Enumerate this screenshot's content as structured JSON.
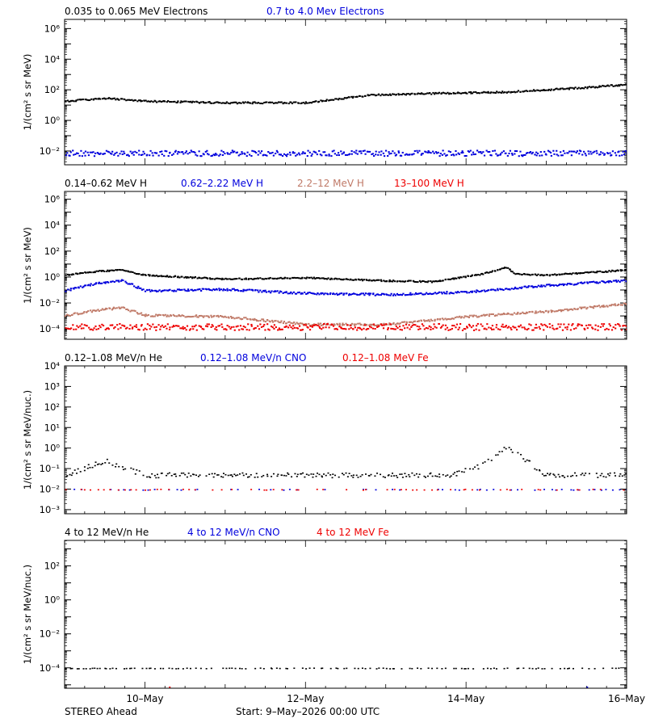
{
  "chart_data": [
    {
      "type": "scatter",
      "log_y": true,
      "ylim_log10": [
        -2.9,
        6.6
      ],
      "y_ticks_log10": [
        -2,
        0,
        2,
        4,
        6
      ],
      "y_tick_labels": [
        "10⁻²",
        "10⁰",
        "10²",
        "10⁴",
        "10⁶"
      ],
      "ylabel": "1/(cm² s sr MeV)",
      "legend_placement": "top",
      "series": [
        {
          "name": "0.035 to 0.065 MeV Electrons",
          "color": "#000000",
          "x_days": [
            0,
            0.5,
            1,
            2,
            3,
            3.8,
            4.5,
            5.5,
            6.5,
            7
          ],
          "y_log10": [
            1.3,
            1.5,
            1.3,
            1.2,
            1.2,
            1.7,
            1.8,
            1.9,
            2.2,
            2.4
          ]
        },
        {
          "name": "0.7 to 4.0 Mev Electrons",
          "color": "#0000dd",
          "x_days": [
            0,
            7
          ],
          "y_log10": [
            -2.1,
            -2.1
          ]
        }
      ]
    },
    {
      "type": "scatter",
      "log_y": true,
      "ylim_log10": [
        -4.8,
        6.6
      ],
      "y_ticks_log10": [
        -4,
        -2,
        0,
        2,
        4,
        6
      ],
      "y_tick_labels": [
        "10⁻⁴",
        "10⁻²",
        "10⁰",
        "10²",
        "10⁴",
        "10⁶"
      ],
      "ylabel": "1/(cm² s sr MeV)",
      "legend_placement": "top",
      "series": [
        {
          "name": "0.14–0.62 MeV H",
          "color": "#000000",
          "x_days": [
            0,
            0.4,
            0.7,
            1,
            2,
            3,
            3.8,
            4.6,
            5.2,
            5.5,
            5.6,
            6,
            7
          ],
          "y_log10": [
            0.2,
            0.5,
            0.6,
            0.2,
            -0.1,
            0,
            -0.2,
            -0.3,
            0.3,
            0.8,
            0.3,
            0.2,
            0.6
          ]
        },
        {
          "name": "0.62–2.22 MeV H",
          "color": "#0000dd",
          "x_days": [
            0,
            0.4,
            0.7,
            1,
            2,
            3,
            4,
            5,
            6,
            7
          ],
          "y_log10": [
            -1,
            -0.4,
            -0.2,
            -1,
            -0.9,
            -1.2,
            -1.3,
            -1.1,
            -0.6,
            -0.2
          ]
        },
        {
          "name": "2.2–12 MeV H",
          "color": "#c07a68",
          "x_days": [
            0,
            0.4,
            0.7,
            1,
            2,
            3,
            4,
            5,
            6,
            7
          ],
          "y_log10": [
            -2.9,
            -2.5,
            -2.3,
            -2.9,
            -3.0,
            -3.6,
            -3.6,
            -3.0,
            -2.6,
            -2.0
          ]
        },
        {
          "name": "13–100 MeV H",
          "color": "#ee0000",
          "x_days": [
            0,
            7
          ],
          "y_log10": [
            -3.8,
            -3.8
          ]
        }
      ]
    },
    {
      "type": "scatter",
      "log_y": true,
      "ylim_log10": [
        -3.2,
        4
      ],
      "y_ticks_log10": [
        -3,
        -2,
        -1,
        0,
        1,
        2,
        3,
        4
      ],
      "y_tick_labels": [
        "10⁻³",
        "10⁻²",
        "10⁻¹",
        "10⁰",
        "10¹",
        "10²",
        "10³",
        "10⁴"
      ],
      "ylabel": "1/(cm² s sr MeV/nuc.)",
      "legend_placement": "top",
      "series": [
        {
          "name": "0.12–1.08 MeV/n He",
          "color": "#000000",
          "x_days": [
            0,
            0.5,
            1,
            4.8,
            5.2,
            5.5,
            6,
            7
          ],
          "y_log10": [
            -1.3,
            -0.6,
            -1.3,
            -1.3,
            -0.8,
            0.1,
            -1.3,
            -1.3
          ]
        },
        {
          "name": "0.12–1.08 MeV/n CNO",
          "color": "#0000dd",
          "x_days": [
            0,
            7
          ],
          "y_log10": [
            -2,
            -2
          ]
        },
        {
          "name": "0.12–1.08 MeV Fe",
          "color": "#ee0000",
          "x_days": [
            0,
            7
          ],
          "y_log10": [
            -2,
            -2
          ]
        }
      ]
    },
    {
      "type": "scatter",
      "log_y": true,
      "ylim_log10": [
        -5.2,
        3.5
      ],
      "y_ticks_log10": [
        -4,
        -2,
        0,
        2
      ],
      "y_tick_labels": [
        "10⁻⁴",
        "10⁻²",
        "10⁰",
        "10²"
      ],
      "ylabel": "1/(cm² s sr MeV/nuc.)",
      "legend_placement": "top",
      "series": [
        {
          "name": "4 to 12 MeV/n He",
          "color": "#000000",
          "x_days": [
            0,
            7
          ],
          "y_log10": [
            -4,
            -4
          ]
        },
        {
          "name": "4 to 12 MeV/n CNO",
          "color": "#0000dd",
          "x_days": [
            6.5
          ],
          "y_log10": [
            -5.1
          ]
        },
        {
          "name": "4 to 12 MeV Fe",
          "color": "#ee0000",
          "x_days": [
            1.3
          ],
          "y_log10": [
            -5.1
          ]
        }
      ]
    }
  ],
  "x_axis": {
    "xlim_days": [
      0,
      7
    ],
    "ticks": [
      {
        "day": 1,
        "label": "10–May"
      },
      {
        "day": 3,
        "label": "12–May"
      },
      {
        "day": 5,
        "label": "14–May"
      },
      {
        "day": 7,
        "label": "16–May"
      }
    ]
  },
  "footer": {
    "left": "STEREO Ahead",
    "center": "Start:  9–May–2026 00:00 UTC"
  }
}
